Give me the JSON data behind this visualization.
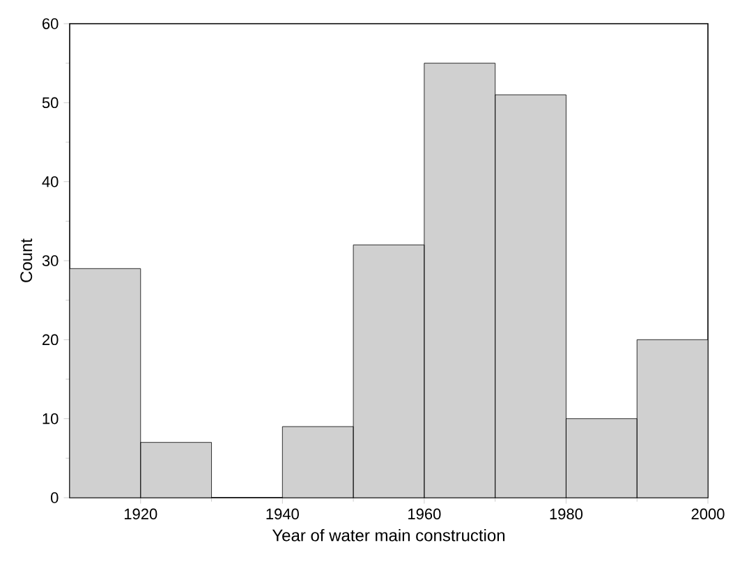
{
  "chart_data": {
    "type": "histogram",
    "xlabel": "Year of water main construction",
    "ylabel": "Count",
    "bins": [
      1910,
      1920,
      1930,
      1940,
      1950,
      1960,
      1970,
      1980,
      1990,
      2000
    ],
    "values": [
      29,
      7,
      0,
      9,
      32,
      55,
      51,
      10,
      20
    ],
    "color": "#d0d0d0",
    "xlim": [
      1910,
      2000
    ],
    "xticks": [
      1920,
      1940,
      1960,
      1980,
      2000
    ],
    "ylim": [
      0,
      60
    ],
    "yticks": [
      0,
      10,
      20,
      30,
      40,
      50,
      60
    ]
  }
}
